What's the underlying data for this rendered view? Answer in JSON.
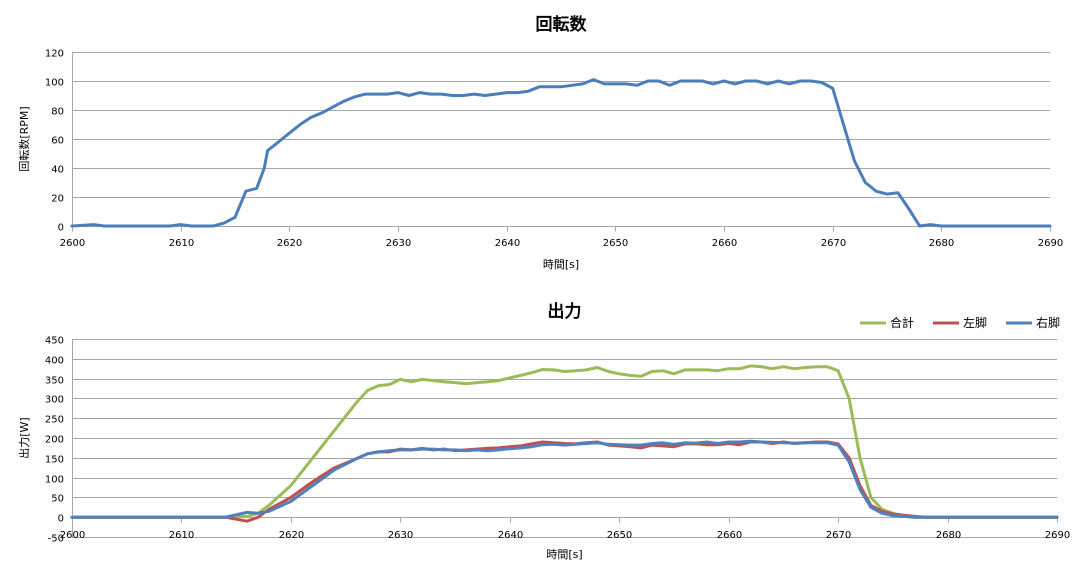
{
  "chart_data": [
    {
      "type": "line",
      "title": "回転数",
      "xlabel": "時間[s]",
      "ylabel": "回転数[RPM]",
      "xlim": [
        2600,
        2690
      ],
      "ylim": [
        0,
        120
      ],
      "x_ticks": [
        "2600",
        "2610",
        "2620",
        "2630",
        "2640",
        "2650",
        "2660",
        "2670",
        "2680",
        "2690"
      ],
      "y_ticks": [
        "0",
        "20",
        "40",
        "60",
        "80",
        "100",
        "120"
      ],
      "grid": true,
      "series": [
        {
          "color": "#4a7ebb",
          "points": [
            [
              2600,
              0
            ],
            [
              2602,
              1
            ],
            [
              2603,
              0
            ],
            [
              2609,
              0
            ],
            [
              2610,
              1
            ],
            [
              2611,
              0
            ],
            [
              2613,
              0
            ],
            [
              2614,
              2
            ],
            [
              2615,
              6
            ],
            [
              2616,
              24
            ],
            [
              2617,
              26
            ],
            [
              2617.7,
              40
            ],
            [
              2618,
              52
            ],
            [
              2619,
              58
            ],
            [
              2620,
              64
            ],
            [
              2621,
              70
            ],
            [
              2622,
              75
            ],
            [
              2623,
              78
            ],
            [
              2624,
              82
            ],
            [
              2625,
              86
            ],
            [
              2626,
              89
            ],
            [
              2627,
              91
            ],
            [
              2628,
              91
            ],
            [
              2629,
              91
            ],
            [
              2630,
              92
            ],
            [
              2631,
              90
            ],
            [
              2632,
              92
            ],
            [
              2633,
              91
            ],
            [
              2634,
              91
            ],
            [
              2635,
              90
            ],
            [
              2636,
              90
            ],
            [
              2637,
              91
            ],
            [
              2638,
              90
            ],
            [
              2639,
              91
            ],
            [
              2640,
              92
            ],
            [
              2641,
              92
            ],
            [
              2642,
              93
            ],
            [
              2643,
              96
            ],
            [
              2644,
              96
            ],
            [
              2645,
              96
            ],
            [
              2646,
              97
            ],
            [
              2647,
              98
            ],
            [
              2648,
              101
            ],
            [
              2649,
              98
            ],
            [
              2650,
              98
            ],
            [
              2651,
              98
            ],
            [
              2652,
              97
            ],
            [
              2653,
              100
            ],
            [
              2654,
              100
            ],
            [
              2655,
              97
            ],
            [
              2656,
              100
            ],
            [
              2657,
              100
            ],
            [
              2658,
              100
            ],
            [
              2659,
              98
            ],
            [
              2660,
              100
            ],
            [
              2661,
              98
            ],
            [
              2662,
              100
            ],
            [
              2663,
              100
            ],
            [
              2664,
              98
            ],
            [
              2665,
              100
            ],
            [
              2666,
              98
            ],
            [
              2667,
              100
            ],
            [
              2668,
              100
            ],
            [
              2669,
              99
            ],
            [
              2670,
              95
            ],
            [
              2671,
              70
            ],
            [
              2672,
              45
            ],
            [
              2673,
              30
            ],
            [
              2674,
              24
            ],
            [
              2675,
              22
            ],
            [
              2676,
              23
            ],
            [
              2677,
              12
            ],
            [
              2678,
              0
            ],
            [
              2679,
              1
            ],
            [
              2680,
              0
            ],
            [
              2690,
              0
            ]
          ]
        }
      ]
    },
    {
      "type": "line",
      "title": "出力",
      "xlabel": "時間[s]",
      "ylabel": "出力[W]",
      "xlim": [
        2600,
        2690
      ],
      "ylim": [
        -50,
        450
      ],
      "x_ticks": [
        "2600",
        "2610",
        "2620",
        "2630",
        "2640",
        "2650",
        "2660",
        "2670",
        "2680",
        "2690"
      ],
      "y_ticks": [
        "-50",
        "0",
        "50",
        "100",
        "150",
        "200",
        "250",
        "300",
        "350",
        "400",
        "450"
      ],
      "grid": true,
      "legend_position": "top-right",
      "series": [
        {
          "name": "合計",
          "color": "#9bbb59",
          "points": [
            [
              2600,
              0
            ],
            [
              2614,
              0
            ],
            [
              2616,
              2
            ],
            [
              2617,
              10
            ],
            [
              2618,
              30
            ],
            [
              2620,
              80
            ],
            [
              2622,
              150
            ],
            [
              2624,
              220
            ],
            [
              2626,
              290
            ],
            [
              2627,
              320
            ],
            [
              2628,
              332
            ],
            [
              2629,
              335
            ],
            [
              2630,
              348
            ],
            [
              2631,
              342
            ],
            [
              2632,
              348
            ],
            [
              2633,
              345
            ],
            [
              2634,
              342
            ],
            [
              2635,
              340
            ],
            [
              2636,
              337
            ],
            [
              2637,
              340
            ],
            [
              2638,
              342
            ],
            [
              2639,
              345
            ],
            [
              2640,
              352
            ],
            [
              2641,
              358
            ],
            [
              2642,
              365
            ],
            [
              2643,
              373
            ],
            [
              2644,
              372
            ],
            [
              2645,
              368
            ],
            [
              2646,
              370
            ],
            [
              2647,
              372
            ],
            [
              2648,
              378
            ],
            [
              2649,
              368
            ],
            [
              2650,
              362
            ],
            [
              2651,
              358
            ],
            [
              2652,
              356
            ],
            [
              2653,
              368
            ],
            [
              2654,
              370
            ],
            [
              2655,
              362
            ],
            [
              2656,
              372
            ],
            [
              2657,
              372
            ],
            [
              2658,
              372
            ],
            [
              2659,
              370
            ],
            [
              2660,
              375
            ],
            [
              2661,
              375
            ],
            [
              2662,
              382
            ],
            [
              2663,
              380
            ],
            [
              2664,
              375
            ],
            [
              2665,
              380
            ],
            [
              2666,
              375
            ],
            [
              2667,
              378
            ],
            [
              2668,
              380
            ],
            [
              2669,
              380
            ],
            [
              2670,
              370
            ],
            [
              2671,
              300
            ],
            [
              2672,
              150
            ],
            [
              2673,
              50
            ],
            [
              2674,
              20
            ],
            [
              2675,
              10
            ],
            [
              2676,
              3
            ],
            [
              2677,
              0
            ],
            [
              2690,
              0
            ]
          ]
        },
        {
          "name": "左脚",
          "color": "#c0504d",
          "points": [
            [
              2600,
              0
            ],
            [
              2614,
              0
            ],
            [
              2616,
              -10
            ],
            [
              2617,
              0
            ],
            [
              2618,
              20
            ],
            [
              2620,
              50
            ],
            [
              2622,
              90
            ],
            [
              2624,
              125
            ],
            [
              2626,
              148
            ],
            [
              2627,
              160
            ],
            [
              2628,
              165
            ],
            [
              2629,
              165
            ],
            [
              2630,
              172
            ],
            [
              2631,
              170
            ],
            [
              2632,
              174
            ],
            [
              2633,
              170
            ],
            [
              2634,
              172
            ],
            [
              2635,
              168
            ],
            [
              2636,
              170
            ],
            [
              2637,
              172
            ],
            [
              2638,
              174
            ],
            [
              2639,
              175
            ],
            [
              2640,
              178
            ],
            [
              2641,
              180
            ],
            [
              2642,
              185
            ],
            [
              2643,
              190
            ],
            [
              2644,
              188
            ],
            [
              2645,
              186
            ],
            [
              2646,
              185
            ],
            [
              2647,
              188
            ],
            [
              2648,
              190
            ],
            [
              2649,
              182
            ],
            [
              2650,
              180
            ],
            [
              2651,
              178
            ],
            [
              2652,
              175
            ],
            [
              2653,
              182
            ],
            [
              2654,
              180
            ],
            [
              2655,
              178
            ],
            [
              2656,
              185
            ],
            [
              2657,
              185
            ],
            [
              2658,
              183
            ],
            [
              2659,
              183
            ],
            [
              2660,
              186
            ],
            [
              2661,
              183
            ],
            [
              2662,
              190
            ],
            [
              2663,
              190
            ],
            [
              2664,
              186
            ],
            [
              2665,
              190
            ],
            [
              2666,
              186
            ],
            [
              2667,
              188
            ],
            [
              2668,
              190
            ],
            [
              2669,
              190
            ],
            [
              2670,
              185
            ],
            [
              2671,
              150
            ],
            [
              2672,
              80
            ],
            [
              2673,
              30
            ],
            [
              2674,
              15
            ],
            [
              2675,
              8
            ],
            [
              2676,
              5
            ],
            [
              2677,
              2
            ],
            [
              2678,
              0
            ],
            [
              2690,
              0
            ]
          ]
        },
        {
          "name": "右脚",
          "color": "#4f81bd",
          "points": [
            [
              2600,
              0
            ],
            [
              2614,
              0
            ],
            [
              2616,
              12
            ],
            [
              2617,
              10
            ],
            [
              2618,
              15
            ],
            [
              2620,
              40
            ],
            [
              2622,
              80
            ],
            [
              2624,
              120
            ],
            [
              2626,
              148
            ],
            [
              2627,
              160
            ],
            [
              2628,
              165
            ],
            [
              2629,
              168
            ],
            [
              2630,
              170
            ],
            [
              2631,
              170
            ],
            [
              2632,
              172
            ],
            [
              2633,
              172
            ],
            [
              2634,
              170
            ],
            [
              2635,
              170
            ],
            [
              2636,
              168
            ],
            [
              2637,
              170
            ],
            [
              2638,
              168
            ],
            [
              2639,
              170
            ],
            [
              2640,
              173
            ],
            [
              2641,
              175
            ],
            [
              2642,
              178
            ],
            [
              2643,
              183
            ],
            [
              2644,
              184
            ],
            [
              2645,
              182
            ],
            [
              2646,
              184
            ],
            [
              2647,
              186
            ],
            [
              2648,
              188
            ],
            [
              2649,
              184
            ],
            [
              2650,
              183
            ],
            [
              2651,
              182
            ],
            [
              2652,
              182
            ],
            [
              2653,
              186
            ],
            [
              2654,
              188
            ],
            [
              2655,
              184
            ],
            [
              2656,
              188
            ],
            [
              2657,
              187
            ],
            [
              2658,
              190
            ],
            [
              2659,
              186
            ],
            [
              2660,
              190
            ],
            [
              2661,
              190
            ],
            [
              2662,
              192
            ],
            [
              2663,
              190
            ],
            [
              2664,
              189
            ],
            [
              2665,
              188
            ],
            [
              2666,
              187
            ],
            [
              2667,
              188
            ],
            [
              2668,
              188
            ],
            [
              2669,
              188
            ],
            [
              2670,
              182
            ],
            [
              2671,
              140
            ],
            [
              2672,
              70
            ],
            [
              2673,
              25
            ],
            [
              2674,
              10
            ],
            [
              2675,
              4
            ],
            [
              2676,
              2
            ],
            [
              2677,
              0
            ],
            [
              2690,
              0
            ]
          ]
        }
      ]
    }
  ]
}
